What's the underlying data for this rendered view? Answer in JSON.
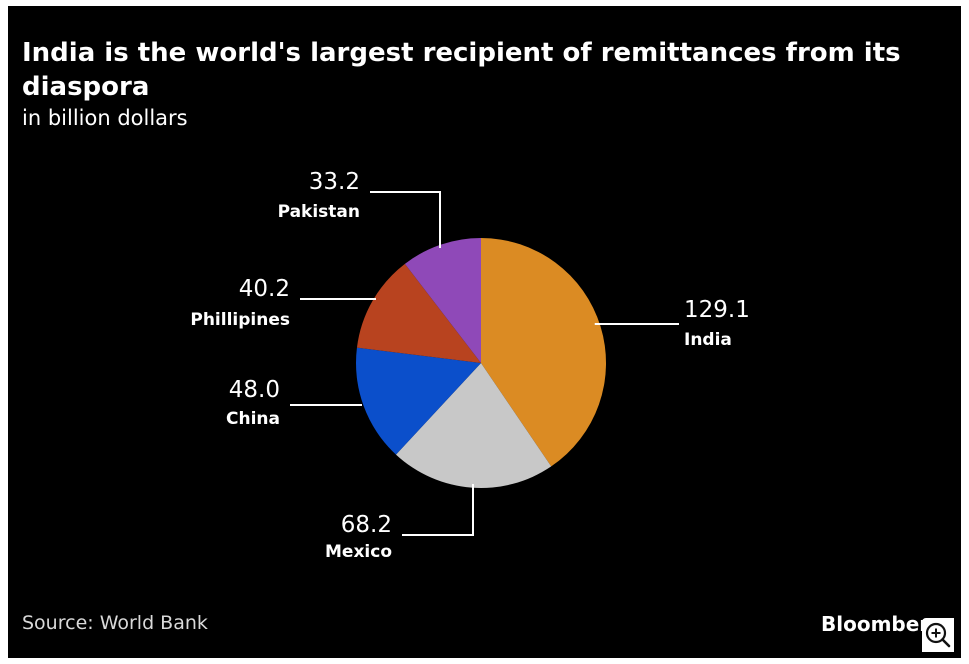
{
  "chart_data": {
    "type": "pie",
    "title": "India is the world's largest recipient of remittances from its diaspora",
    "subtitle": "in billion dollars",
    "slices": [
      {
        "label": "India",
        "value": 129.1,
        "value_text": "129.1",
        "color": "#db8b23"
      },
      {
        "label": "Mexico",
        "value": 68.2,
        "value_text": "68.2",
        "color": "#c8c8c8"
      },
      {
        "label": "China",
        "value": 48.0,
        "value_text": "48.0",
        "color": "#0b4fcb"
      },
      {
        "label": "Phillipines",
        "value": 40.2,
        "value_text": "40.2",
        "color": "#b8431f"
      },
      {
        "label": "Pakistan",
        "value": 33.2,
        "value_text": "33.2",
        "color": "#8f49b8"
      }
    ],
    "start_angle": "12 o'clock",
    "direction": "clockwise"
  },
  "footer": {
    "source": "Source: World Bank",
    "brand": "Bloomberg"
  },
  "icons": {
    "zoom": "zoom-in-icon"
  }
}
